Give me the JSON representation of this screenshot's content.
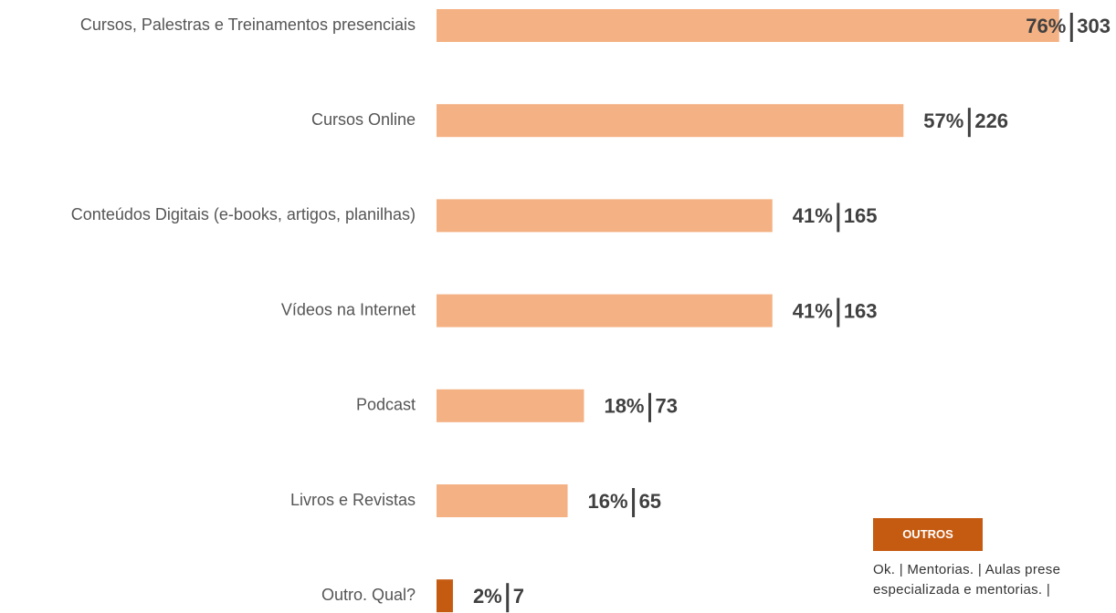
{
  "chart_data": {
    "type": "bar",
    "orientation": "horizontal",
    "categories": [
      "Cursos, Palestras e Treinamentos presenciais",
      "Cursos Online",
      "Conteúdos Digitais (e-books, artigos, planilhas)",
      "Vídeos na Internet",
      "Podcast",
      "Livros e Revistas",
      "Outro. Qual?"
    ],
    "values": [
      76,
      57,
      41,
      41,
      18,
      16,
      2
    ],
    "value_labels": [
      "76%",
      "57%",
      "41%",
      "41%",
      "18%",
      "16%",
      "2%"
    ],
    "counts": [
      303,
      226,
      165,
      163,
      73,
      65,
      7
    ],
    "colors": [
      "#f4b183",
      "#f4b183",
      "#f4b183",
      "#f4b183",
      "#f4b183",
      "#f4b183",
      "#c55a11"
    ],
    "annotation": {
      "title": "OUTROS",
      "lines": [
        "Ok. | Mentorias. | Aulas prese",
        "especializada e mentorias. |"
      ]
    }
  }
}
